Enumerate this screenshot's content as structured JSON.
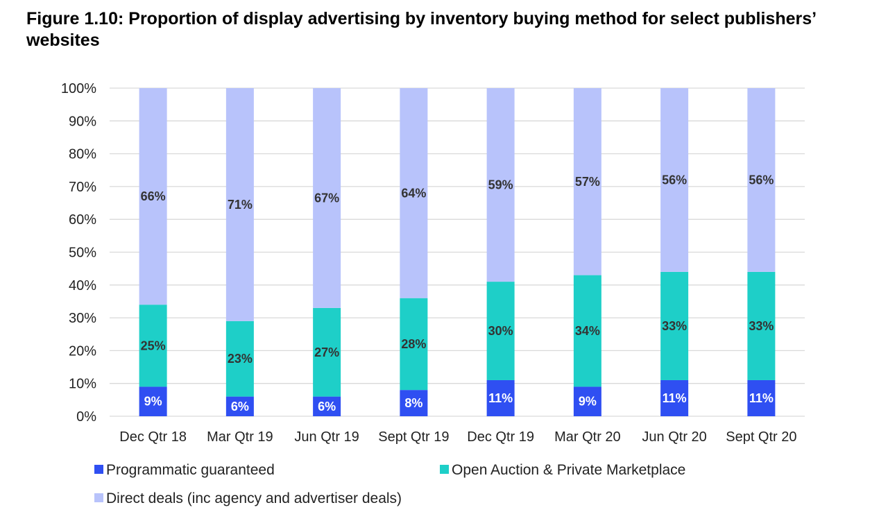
{
  "page": {
    "title": "Figure 1.10: Proportion of display advertising by inventory buying method for select publishers’ websites"
  },
  "colors": {
    "programmatic": "#2f4ff2",
    "open_auction": "#1ecfc8",
    "direct": "#b8c3fb",
    "grid": "#d9d9d9",
    "label_light": "#ffffff",
    "label_dark": "#333333"
  },
  "chart_data": {
    "type": "bar",
    "stacked": true,
    "categories": [
      "Dec Qtr 18",
      "Mar Qtr 19",
      "Jun Qtr 19",
      "Sept Qtr 19",
      "Dec Qtr 19",
      "Mar Qtr 20",
      "Jun Qtr 20",
      "Sept Qtr 20"
    ],
    "series": [
      {
        "name": "Programmatic guaranteed",
        "color": "#2f4ff2",
        "values": [
          9,
          6,
          6,
          8,
          11,
          9,
          11,
          11
        ],
        "labels": [
          "9%",
          "6%",
          "6%",
          "8%",
          "11%",
          "9%",
          "11%",
          "11%"
        ]
      },
      {
        "name": "Open Auction & Private Marketplace",
        "color": "#1ecfc8",
        "values": [
          25,
          23,
          27,
          28,
          30,
          34,
          33,
          33
        ],
        "labels": [
          "25%",
          "23%",
          "27%",
          "28%",
          "30%",
          "34%",
          "33%",
          "33%"
        ]
      },
      {
        "name": "Direct deals (inc agency and advertiser deals)",
        "color": "#b8c3fb",
        "values": [
          66,
          71,
          67,
          64,
          59,
          57,
          56,
          56
        ],
        "labels": [
          "66%",
          "71%",
          "67%",
          "64%",
          "59%",
          "57%",
          "56%",
          "56%"
        ]
      }
    ],
    "y_ticks": [
      "0%",
      "10%",
      "20%",
      "30%",
      "40%",
      "50%",
      "60%",
      "70%",
      "80%",
      "90%",
      "100%"
    ],
    "ylim": [
      0,
      100
    ],
    "grid": true,
    "legend_position": "bottom"
  }
}
